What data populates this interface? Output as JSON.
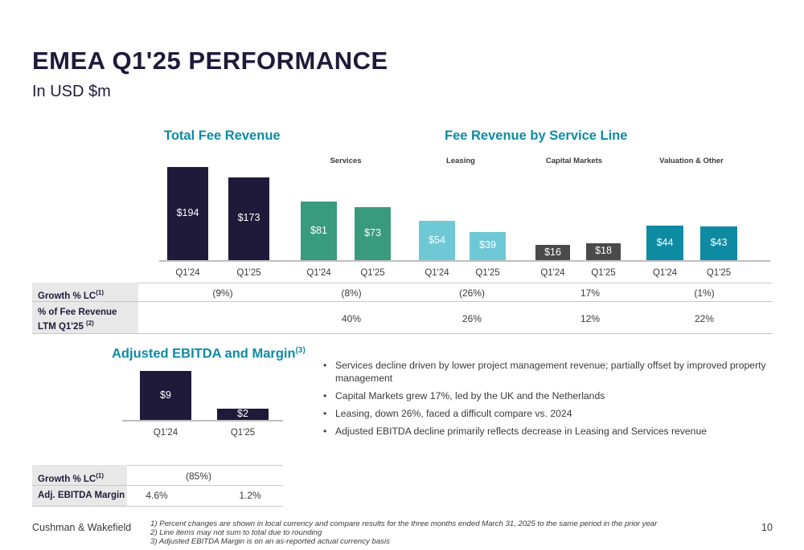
{
  "title": "EMEA Q1'25 PERFORMANCE",
  "subtitle": "In USD $m",
  "colors": {
    "navy": "#1f1a3a",
    "green": "#3a9a7e",
    "light_blue": "#6fc8d6",
    "dark_gray": "#4a4a4a",
    "teal": "#0e8aa3"
  },
  "total_fee_revenue": {
    "heading": "Total Fee Revenue"
  },
  "service_line": {
    "heading": "Fee Revenue by Service Line",
    "services": "Services",
    "leasing": "Leasing",
    "capital_markets": "Capital Markets",
    "valuation": "Valuation & Other"
  },
  "ebitda": {
    "heading": "Adjusted EBITDA and Margin",
    "heading_sup": "(3)"
  },
  "chart_data": [
    {
      "type": "bar",
      "title": "Total Fee Revenue",
      "categories": [
        "Q1'24",
        "Q1'25"
      ],
      "values": [
        194,
        173
      ],
      "labels": [
        "$194",
        "$173"
      ],
      "color": "#1f1a3a"
    },
    {
      "type": "bar",
      "title": "Services",
      "categories": [
        "Q1'24",
        "Q1'25"
      ],
      "values": [
        81,
        73
      ],
      "labels": [
        "$81",
        "$73"
      ],
      "color": "#3a9a7e"
    },
    {
      "type": "bar",
      "title": "Leasing",
      "categories": [
        "Q1'24",
        "Q1'25"
      ],
      "values": [
        54,
        39
      ],
      "labels": [
        "$54",
        "$39"
      ],
      "color": "#6fc8d6"
    },
    {
      "type": "bar",
      "title": "Capital Markets",
      "categories": [
        "Q1'24",
        "Q1'25"
      ],
      "values": [
        16,
        18
      ],
      "labels": [
        "$16",
        "$18"
      ],
      "color": "#4a4a4a"
    },
    {
      "type": "bar",
      "title": "Valuation & Other",
      "categories": [
        "Q1'24",
        "Q1'25"
      ],
      "values": [
        44,
        43
      ],
      "labels": [
        "$44",
        "$43"
      ],
      "color": "#0e8aa3"
    },
    {
      "type": "bar",
      "title": "Adjusted EBITDA and Margin",
      "categories": [
        "Q1'24",
        "Q1'25"
      ],
      "values": [
        9,
        2
      ],
      "labels": [
        "$9",
        "$2"
      ],
      "color": "#1f1a3a"
    }
  ],
  "table": {
    "growth_label": "Growth % LC",
    "growth_sup": "(1)",
    "growth_values": [
      "(9%)",
      "(8%)",
      "(26%)",
      "17%",
      "(1%)"
    ],
    "pct_label_line1": "% of Fee Revenue",
    "pct_label_line2": "LTM Q1'25",
    "pct_sup": "(2)",
    "pct_values": [
      "40%",
      "26%",
      "12%",
      "22%"
    ]
  },
  "ebitda_table": {
    "growth_label": "Growth % LC",
    "growth_sup": "(1)",
    "growth_value": "(85%)",
    "margin_label": "Adj. EBITDA Margin",
    "margin_values": [
      "4.6%",
      "1.2%"
    ]
  },
  "bullets": [
    "Services decline driven by lower project management revenue; partially offset by improved property management",
    "Capital Markets grew 17%, led by the UK and the Netherlands",
    "Leasing, down 26%, faced a difficult compare vs. 2024",
    "Adjusted EBITDA decline primarily reflects decrease in Leasing and Services revenue"
  ],
  "footer": {
    "company": "Cushman & Wakefield",
    "page": "10",
    "notes": [
      "1)    Percent changes are shown in local currency and compare results for the three months ended March 31, 2025 to the same period in the prior year",
      "2)    Line items may not sum to total due to rounding",
      "3)    Adjusted EBITDA Margin is on an as-reported actual currency basis"
    ]
  }
}
